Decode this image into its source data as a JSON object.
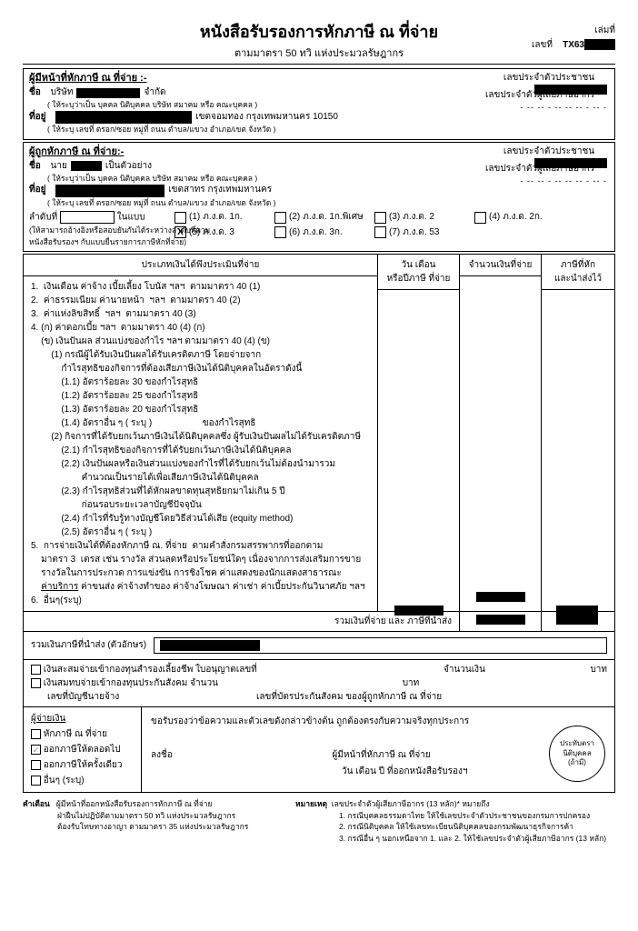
{
  "header": {
    "title": "หนังสือรับรองการหักภาษี ณ ที่จ่าย",
    "subtitle": "ตามมาตรา  50  ทวิ  แห่งประมวลรัษฎากร",
    "book_label": "เล่มที่",
    "doc_label": "เลขที่",
    "doc_prefix": "TX63"
  },
  "payer": {
    "section_title": "ผู้มีหน้าที่หักภาษี  ณ  ที่จ่าย :-",
    "name_label": "ชื่อ",
    "name_prefix": "บริษัท",
    "name_suffix": "จำกัด",
    "name_hint": "( ให้ระบุว่าเป็น  บุคคล นิติบุคคล บริษัท สมาคม หรือ คณะบุคคล )",
    "addr_label": "ที่อยู่",
    "addr_suffix": "เขตจอมทอง กรุงเทพมหานคร 10150",
    "addr_hint": "( ให้ระบุ เลขที่ ตรอก/ซอย  หมู่ที่  ถนน   ตำบล/แขวง  อำเภอ/เขต  จังหวัด )",
    "id_label": "เลขประจำตัวประชาชน",
    "tax_label": "เลขประจำตัวผู้เสียภาษีอากร",
    "dots": "- -- -- - -- -- -- - -- -"
  },
  "payee": {
    "section_title": "ผู้ถูกหักภาษี  ณ  ที่จ่าย:-",
    "name_label": "ชื่อ",
    "name_prefix": "นาย",
    "name_suffix": "เป็นตัวอย่าง",
    "name_hint": "( ให้ระบุว่าเป็น  บุคคล นิติบุคคล บริษัท สมาคม หรือ คณะบุคคล  )",
    "addr_label": "ที่อยู่",
    "addr_suffix": "เขตสาทร กรุงเทพมหานคร",
    "addr_hint": "( ให้ระบุ เลขที่  ตรอก/ซอย  หมู่ที่  ถนน   ตำบล/แขวง   อำเภอ/เขต  จังหวัด   )",
    "id_label": "เลขประจำตัวประชาชน",
    "tax_label": "เลขประจำตัวผู้เสียภาษีอากร",
    "dots": "- -- -- - -- -- -- - -- -",
    "order_label": "ลำดับที่",
    "in_form": "ในแบบ",
    "ref_hint1": "(ให้สามารถอ้างอิงหรือสอบยันกันได้ระหว่างลำดับที่ตาม",
    "ref_hint2": "หนังสือรับรองฯ กับแบบยื่นรายการภาษีหักที่จ่าย)",
    "forms": [
      {
        "n": "(1)",
        "t": "ภ.ง.ด. 1ก."
      },
      {
        "n": "(2)",
        "t": "ภ.ง.ด. 1ก.พิเศษ"
      },
      {
        "n": "(3)",
        "t": "ภ.ง.ด. 2"
      },
      {
        "n": "(4)",
        "t": "ภ.ง.ด. 2ก."
      },
      {
        "n": "(5)",
        "t": "ภ.ง.ด. 3",
        "x": "X"
      },
      {
        "n": "(6)",
        "t": "ภ.ง.ด. 3ก."
      },
      {
        "n": "(7)",
        "t": "ภ.ง.ด. 53"
      }
    ]
  },
  "income": {
    "h1": "ประเภทเงินได้พึงประเมินที่จ่าย",
    "h2": "วัน  เดือน\nหรือปีภาษี ที่จ่าย",
    "h3": "จำนวนเงินที่จ่าย",
    "h4": "ภาษีที่หัก\nและนำส่งไว้",
    "lines": [
      "1.  เงินเดือน ค่าจ้าง เบี้ยเลี้ยง โบนัส ฯลฯ  ตามมาตรา 40 (1)",
      "2.  ค่าธรรมเนียม ค่านายหน้า  ฯลฯ  ตามมาตรา 40 (2)",
      "3.  ค่าแห่งลิขสิทธิ์  ฯลฯ  ตามมาตรา 40 (3)",
      "4. (ก) ค่าดอกเบี้ย ฯลฯ  ตามมาตรา 40 (4) (ก)",
      "    (ข) เงินปันผล ส่วนแบ่งของกำไร ฯลฯ ตามมาตรา 40 (4) (ข)",
      "        (1) กรณีผู้ได้รับเงินปันผลได้รับเครดิตภาษี โดยจ่ายจาก",
      "            กำไรสุทธิของกิจการที่ต้องเสียภาษีเงินได้นิติบุคคลในอัตราดังนี้",
      "            (1.1) อัตราร้อยละ 30 ของกำไรสุทธิ",
      "            (1.2) อัตราร้อยละ 25 ของกำไรสุทธิ",
      "            (1.3) อัตราร้อยละ 20 ของกำไรสุทธิ",
      "            (1.4) อัตราอื่น ๆ ( ระบุ )                    ของกำไรสุทธิ",
      "        (2) กิจการที่ได้รับยกเว้นภาษีเงินได้นิติบุคคลซึ่ง ผู้รับเงินปันผลไม่ได้รับเครดิตภาษี",
      "            (2.1) กำไรสุทธิของกิจการที่ได้รับยกเว้นภาษีเงินได้นิติบุคคล",
      "            (2.2) เงินปันผลหรือเงินส่วนแบ่งของกำไรที่ได้รับยกเว้นไม่ต้องนำมารวม",
      "                    คำนวณเป็นรายได้เพื่อเสียภาษีเงินได้นิติบุคคล",
      "            (2.3) กำไรสุทธิส่วนที่ได้หักผลขาดทุนสุทธิยกมาไม่เกิน 5 ปี",
      "                    ก่อนรอบระยะเวลาบัญชีปัจจุบัน",
      "            (2.4) กำไรที่รับรู้ทางบัญชีโดยวิธีส่วนได้เสีย (equity method)",
      "            (2.5) อัตราอื่น ๆ ( ระบุ )",
      "5.  การจ่ายเงินได้ที่ต้องหักภาษี ณ. ที่จ่าย  ตามคำสั่งกรมสรรพากรที่ออกตาม",
      "    มาตรา 3  เตรส เช่น รางวัล ส่วนลดหรือประโยชน์ใดๆ เนื่องจากการส่งเสริมการขาย",
      "    รางวัลในการประกวด การแข่งขัน การชิงโชค ค่าแสดงของนักแสดงสาธารณะ",
      "    ค่าบริการ ค่าขนส่ง ค่าจ้างทำของ ค่าจ้างโฆษณา ค่าเช่า ค่าเบี้ยประกันวินาศภัย ฯลฯ",
      "6.  อื่นๆ(ระบุ)"
    ],
    "total_label": "รวมเงินที่จ่าย และ ภาษีที่นำส่ง",
    "words_label": "รวมเงินภาษีที่นำส่ง (ตัวอักษร)"
  },
  "fund": {
    "l1": "เงินสะสมจ่ายเข้ากองทุนสำรองเลี้ยงชีพ ใบอนุญาตเลขที่",
    "l2": "เงินสมทบจ่ายเข้ากองทุนประกันสังคม จำนวน",
    "baht": "บาท",
    "amount_label": "จำนวนเงิน",
    "l3_left": "เลขที่บัญชีนายจ้าง",
    "l3_right": "เลขที่บัตรประกันสังคม ของผู้ถูกหักภาษี ณ ที่จ่าย"
  },
  "cert": {
    "payer_label": "ผู้จ่ายเงิน",
    "opts": [
      "หักภาษี ณ ที่จ่าย",
      "ออกภาษีให้ตลอดไป",
      "ออกภาษีให้ครั้งเดียว",
      "อื่นๆ (ระบุ)"
    ],
    "checked_idx": 1,
    "confirm": "ขอรับรองว่าข้อความและตัวเลขดังกล่าวข้างต้น ถูกต้องตรงกับความจริงทุกประการ",
    "sign": "ลงชื่อ",
    "authority": "ผู้มีหน้าที่หักภาษี ณ ที่จ่าย",
    "date": "วัน เดือน ปี  ที่ออกหนังสือรับรองฯ",
    "stamp": "ประทับตรา\nนิติบุคคล\n(ถ้ามี)"
  },
  "notes": {
    "warn_label": "คำเตือน",
    "warn": [
      "ผู้มีหน้าที่ออกหนังสือรับรองการหักภาษี ณ ที่จ่าย",
      "ฝ่าฝืนไม่ปฏิบัติตามมาตรา  50  ทวิ  แห่งประมวลรัษฎากร",
      "ต้องรับโทษทางอาญา  ตามมาตรา  35  แห่งประมวลรัษฎากร"
    ],
    "note_label": "หมายเหตุ",
    "note_title": "เลขประจำตัวผู้เสียภาษีอากร (13 หลัก)* หมายถึง",
    "note": [
      "1. กรณีบุคคลธรรมดาไทย ให้ใช้เลขประจําตัวประชาชนของกรมการปกครอง",
      "2. กรณีนิติบุคคล ให้ใช้เลขทะเบียนนิติบุคคลของกรมพัฒนาธุรกิจการค้า",
      "3. กรณีอื่น ๆ นอกเหนือจาก 1. และ 2. ให้ใช้เลขประจำตัวผู้เสียภาษีอากร (13 หลัก)"
    ]
  }
}
